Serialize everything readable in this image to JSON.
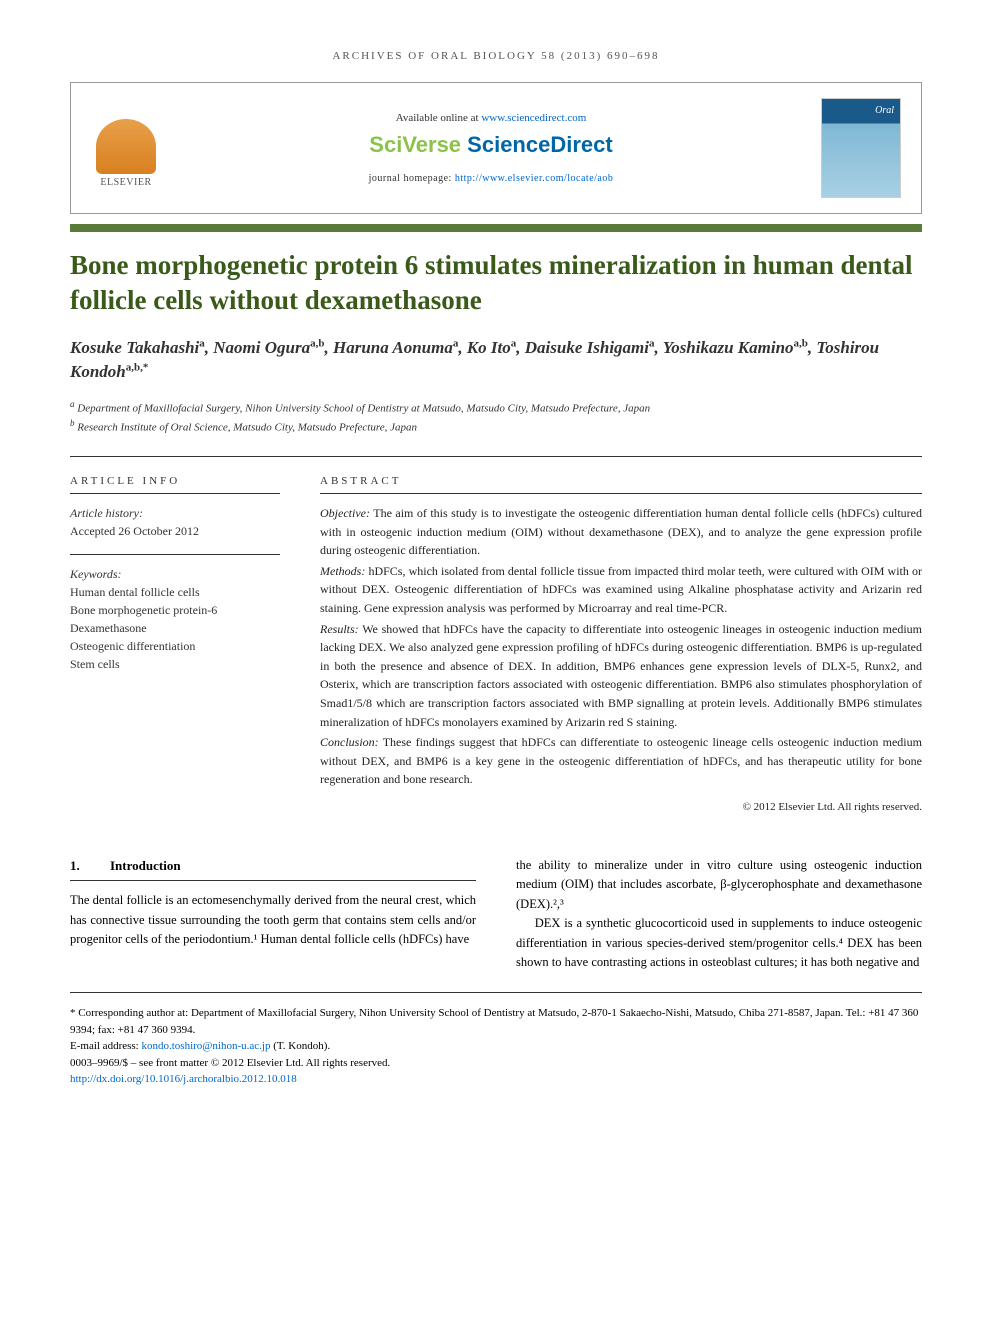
{
  "running_head": "ARCHIVES OF ORAL BIOLOGY 58 (2013) 690–698",
  "header": {
    "elsevier": "ELSEVIER",
    "available": "Available online at ",
    "available_url": "www.sciencedirect.com",
    "brand_sci": "SciVerse ",
    "brand_sd": "ScienceDirect",
    "homepage_label": "journal homepage: ",
    "homepage_url": "http://www.elsevier.com/locate/aob",
    "cover_label": "Oral Biology"
  },
  "title": "Bone morphogenetic protein 6 stimulates mineralization in human dental follicle cells without dexamethasone",
  "authors_html": "Kosuke Takahashi<sup>a</sup>, Naomi Ogura<sup>a,b</sup>, Haruna Aonuma<sup>a</sup>, Ko Ito<sup>a</sup>, Daisuke Ishigami<sup>a</sup>, Yoshikazu Kamino<sup>a,b</sup>, Toshirou Kondoh<sup>a,b,*</sup>",
  "affiliations": [
    {
      "sup": "a",
      "text": "Department of Maxillofacial Surgery, Nihon University School of Dentistry at Matsudo, Matsudo City, Matsudo Prefecture, Japan"
    },
    {
      "sup": "b",
      "text": "Research Institute of Oral Science, Matsudo City, Matsudo Prefecture, Japan"
    }
  ],
  "info": {
    "heading": "ARTICLE INFO",
    "history_label": "Article history:",
    "history": "Accepted 26 October 2012",
    "keywords_label": "Keywords:",
    "keywords": [
      "Human dental follicle cells",
      "Bone morphogenetic protein-6",
      "Dexamethasone",
      "Osteogenic differentiation",
      "Stem cells"
    ]
  },
  "abstract": {
    "heading": "ABSTRACT",
    "objective_label": "Objective:",
    "objective": "The aim of this study is to investigate the osteogenic differentiation human dental follicle cells (hDFCs) cultured with in osteogenic induction medium (OIM) without dexamethasone (DEX), and to analyze the gene expression profile during osteogenic differentiation.",
    "methods_label": "Methods:",
    "methods": "hDFCs, which isolated from dental follicle tissue from impacted third molar teeth, were cultured with OIM with or without DEX. Osteogenic differentiation of hDFCs was examined using Alkaline phosphatase activity and Arizarin red staining. Gene expression analysis was performed by Microarray and real time-PCR.",
    "results_label": "Results:",
    "results": "We showed that hDFCs have the capacity to differentiate into osteogenic lineages in osteogenic induction medium lacking DEX. We also analyzed gene expression profiling of hDFCs during osteogenic differentiation. BMP6 is up-regulated in both the presence and absence of DEX. In addition, BMP6 enhances gene expression levels of DLX-5, Runx2, and Osterix, which are transcription factors associated with osteogenic differentiation. BMP6 also stimulates phosphorylation of Smad1/5/8 which are transcription factors associated with BMP signalling at protein levels. Additionally BMP6 stimulates mineralization of hDFCs monolayers examined by Arizarin red S staining.",
    "conclusion_label": "Conclusion:",
    "conclusion": "These findings suggest that hDFCs can differentiate to osteogenic lineage cells osteogenic induction medium without DEX, and BMP6 is a key gene in the osteogenic differentiation of hDFCs, and has therapeutic utility for bone regeneration and bone research.",
    "copyright": "© 2012 Elsevier Ltd. All rights reserved."
  },
  "body": {
    "section_num": "1.",
    "section_title": "Introduction",
    "col1": "The dental follicle is an ectomesenchymally derived from the neural crest, which has connective tissue surrounding the tooth germ that contains stem cells and/or progenitor cells of the periodontium.¹ Human dental follicle cells (hDFCs) have",
    "col2_p1": "the ability to mineralize under in vitro culture using osteogenic induction medium (OIM) that includes ascorbate, β-glycerophosphate and dexamethasone (DEX).²,³",
    "col2_p2": "DEX is a synthetic glucocorticoid used in supplements to induce osteogenic differentiation in various species-derived stem/progenitor cells.⁴ DEX has been shown to have contrasting actions in osteoblast cultures; it has both negative and"
  },
  "footnotes": {
    "corr": "* Corresponding author at: Department of Maxillofacial Surgery, Nihon University School of Dentistry at Matsudo, 2-870-1 Sakaecho-Nishi, Matsudo, Chiba 271-8587, Japan. Tel.: +81 47 360 9394; fax: +81 47 360 9394.",
    "email_label": "E-mail address: ",
    "email": "kondo.toshiro@nihon-u.ac.jp",
    "email_suffix": " (T. Kondoh).",
    "issn": "0003–9969/$ – see front matter © 2012 Elsevier Ltd. All rights reserved.",
    "doi": "http://dx.doi.org/10.1016/j.archoralbio.2012.10.018"
  }
}
